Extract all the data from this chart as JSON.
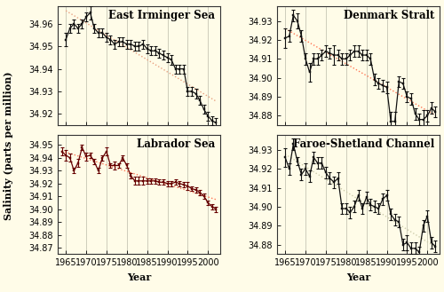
{
  "background_color": "#FFFCE8",
  "title_fontsize": 8.5,
  "tick_fontsize": 7,
  "label_fontsize": 8,
  "panels": [
    {
      "title": "East Irminger Sea",
      "ylim": [
        34.915,
        34.968
      ],
      "yticks": [
        34.92,
        34.93,
        34.94,
        34.95,
        34.96
      ],
      "trend_color": "#E8A080",
      "line_color": "#111111",
      "years": [
        1965,
        1966,
        1967,
        1968,
        1969,
        1970,
        1971,
        1972,
        1973,
        1974,
        1975,
        1976,
        1977,
        1978,
        1979,
        1980,
        1981,
        1982,
        1983,
        1984,
        1985,
        1986,
        1987,
        1988,
        1989,
        1990,
        1991,
        1992,
        1993,
        1994,
        1995,
        1996,
        1997,
        1998,
        1999,
        2000,
        2001,
        2002
      ],
      "values": [
        34.953,
        34.958,
        34.96,
        34.958,
        34.96,
        34.963,
        34.965,
        34.958,
        34.956,
        34.956,
        34.954,
        34.953,
        34.951,
        34.952,
        34.952,
        34.951,
        34.951,
        34.95,
        34.95,
        34.951,
        34.949,
        34.948,
        34.948,
        34.947,
        34.946,
        34.945,
        34.944,
        34.94,
        34.94,
        34.94,
        34.93,
        34.93,
        34.929,
        34.926,
        34.922,
        34.919,
        34.917,
        34.916
      ],
      "errors": [
        0.003,
        0.002,
        0.002,
        0.002,
        0.002,
        0.002,
        0.003,
        0.002,
        0.002,
        0.002,
        0.002,
        0.002,
        0.002,
        0.002,
        0.002,
        0.002,
        0.002,
        0.002,
        0.002,
        0.002,
        0.002,
        0.002,
        0.002,
        0.002,
        0.002,
        0.002,
        0.002,
        0.002,
        0.002,
        0.002,
        0.002,
        0.002,
        0.002,
        0.002,
        0.002,
        0.002,
        0.002,
        0.002
      ]
    },
    {
      "title": "Denmark Stralt",
      "ylim": [
        34.875,
        34.938
      ],
      "yticks": [
        34.88,
        34.89,
        34.9,
        34.91,
        34.92,
        34.93
      ],
      "trend_color": "#FF7755",
      "line_color": "#111111",
      "years": [
        1965,
        1966,
        1967,
        1968,
        1969,
        1970,
        1971,
        1972,
        1973,
        1974,
        1975,
        1976,
        1977,
        1978,
        1979,
        1980,
        1981,
        1982,
        1983,
        1984,
        1985,
        1986,
        1987,
        1988,
        1989,
        1990,
        1991,
        1992,
        1993,
        1994,
        1995,
        1996,
        1997,
        1998,
        1999,
        2000,
        2001,
        2002
      ],
      "values": [
        34.921,
        34.922,
        34.933,
        34.93,
        34.922,
        34.91,
        34.903,
        34.91,
        34.91,
        34.912,
        34.914,
        34.913,
        34.912,
        34.912,
        34.91,
        34.91,
        34.912,
        34.914,
        34.914,
        34.912,
        34.912,
        34.91,
        34.899,
        34.897,
        34.896,
        34.895,
        34.877,
        34.877,
        34.898,
        34.897,
        34.89,
        34.889,
        34.881,
        34.878,
        34.878,
        34.88,
        34.884,
        34.882
      ],
      "errors": [
        0.005,
        0.003,
        0.003,
        0.004,
        0.003,
        0.003,
        0.005,
        0.003,
        0.003,
        0.003,
        0.003,
        0.003,
        0.005,
        0.003,
        0.003,
        0.003,
        0.003,
        0.003,
        0.003,
        0.003,
        0.003,
        0.003,
        0.003,
        0.003,
        0.003,
        0.003,
        0.005,
        0.005,
        0.003,
        0.003,
        0.003,
        0.003,
        0.003,
        0.003,
        0.005,
        0.003,
        0.003,
        0.003
      ]
    },
    {
      "title": "Labrador Sea",
      "ylim": [
        34.865,
        34.958
      ],
      "yticks": [
        34.87,
        34.88,
        34.89,
        34.9,
        34.91,
        34.92,
        34.93,
        34.94,
        34.95
      ],
      "trend_color": "#FF7755",
      "line_color": "#660000",
      "years": [
        1964,
        1965,
        1966,
        1967,
        1968,
        1969,
        1970,
        1971,
        1972,
        1973,
        1974,
        1975,
        1976,
        1977,
        1978,
        1979,
        1980,
        1981,
        1982,
        1983,
        1984,
        1985,
        1986,
        1987,
        1988,
        1989,
        1990,
        1991,
        1992,
        1993,
        1994,
        1995,
        1996,
        1997,
        1998,
        1999,
        2000,
        2001,
        2002
      ],
      "values": [
        34.945,
        34.942,
        34.94,
        34.93,
        34.936,
        34.948,
        34.941,
        34.942,
        34.937,
        34.93,
        34.94,
        34.945,
        34.934,
        34.934,
        34.934,
        34.94,
        34.934,
        34.926,
        34.922,
        34.922,
        34.922,
        34.922,
        34.922,
        34.922,
        34.921,
        34.921,
        34.92,
        34.92,
        34.921,
        34.92,
        34.919,
        34.918,
        34.916,
        34.915,
        34.913,
        34.91,
        34.905,
        34.902,
        34.9
      ],
      "errors": [
        0.003,
        0.004,
        0.003,
        0.002,
        0.003,
        0.002,
        0.003,
        0.002,
        0.002,
        0.002,
        0.002,
        0.003,
        0.002,
        0.003,
        0.002,
        0.002,
        0.002,
        0.002,
        0.003,
        0.003,
        0.003,
        0.002,
        0.002,
        0.002,
        0.002,
        0.002,
        0.002,
        0.002,
        0.002,
        0.002,
        0.002,
        0.003,
        0.002,
        0.002,
        0.002,
        0.002,
        0.002,
        0.002,
        0.002
      ]
    },
    {
      "title": "Faroe-Shetland Channel",
      "ylim": [
        34.875,
        34.938
      ],
      "yticks": [
        34.88,
        34.89,
        34.9,
        34.91,
        34.92,
        34.93
      ],
      "trend_color": "#CCCCAA",
      "line_color": "#111111",
      "years": [
        1965,
        1966,
        1967,
        1968,
        1969,
        1970,
        1971,
        1972,
        1973,
        1974,
        1975,
        1976,
        1977,
        1978,
        1979,
        1980,
        1981,
        1982,
        1983,
        1984,
        1985,
        1986,
        1987,
        1988,
        1989,
        1990,
        1991,
        1992,
        1993,
        1994,
        1995,
        1996,
        1997,
        1998,
        1999,
        2000,
        2001,
        2002
      ],
      "values": [
        34.926,
        34.92,
        34.933,
        34.924,
        34.917,
        34.92,
        34.916,
        34.926,
        34.923,
        34.923,
        34.918,
        34.915,
        34.913,
        34.915,
        34.899,
        34.899,
        34.897,
        34.9,
        34.906,
        34.899,
        34.905,
        34.901,
        34.9,
        34.899,
        34.904,
        34.906,
        34.896,
        34.893,
        34.892,
        34.88,
        34.881,
        34.878,
        34.878,
        34.876,
        34.89,
        34.895,
        34.881,
        34.879
      ],
      "errors": [
        0.005,
        0.003,
        0.003,
        0.002,
        0.003,
        0.003,
        0.003,
        0.003,
        0.003,
        0.003,
        0.003,
        0.003,
        0.003,
        0.003,
        0.003,
        0.003,
        0.003,
        0.003,
        0.003,
        0.003,
        0.003,
        0.003,
        0.003,
        0.003,
        0.003,
        0.003,
        0.003,
        0.003,
        0.003,
        0.003,
        0.004,
        0.003,
        0.003,
        0.003,
        0.003,
        0.003,
        0.003,
        0.003
      ]
    }
  ],
  "xlim": [
    1963,
    2003
  ],
  "xticks": [
    1965,
    1970,
    1975,
    1980,
    1985,
    1990,
    1995,
    2000
  ],
  "xlabel": "Year",
  "ylabel": "Salinity (parts per million)"
}
